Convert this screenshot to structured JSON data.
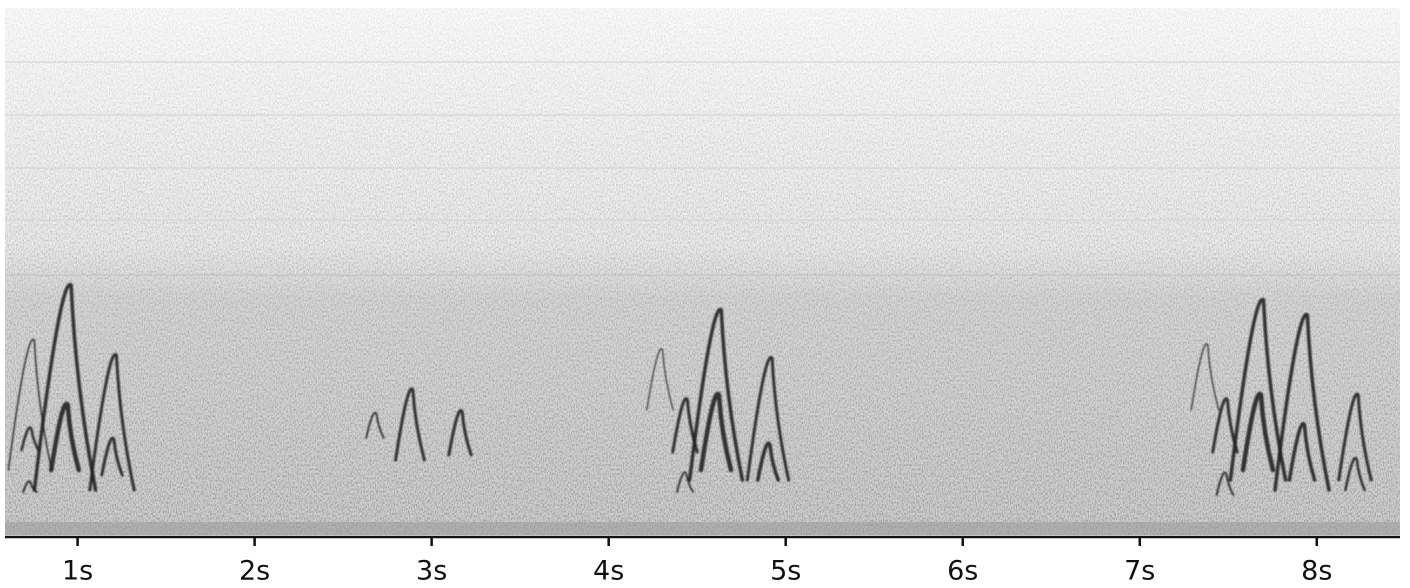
{
  "chart_data": {
    "type": "spectrogram",
    "xlim": [
      0.59,
      8.47
    ],
    "xticks": [
      {
        "value": 1,
        "label": "1s"
      },
      {
        "value": 2,
        "label": "2s"
      },
      {
        "value": 3,
        "label": "3s"
      },
      {
        "value": 4,
        "label": "4s"
      },
      {
        "value": 5,
        "label": "5s"
      },
      {
        "value": 6,
        "label": "6s"
      },
      {
        "value": 7,
        "label": "7s"
      },
      {
        "value": 8,
        "label": "8s"
      }
    ]
  }
}
